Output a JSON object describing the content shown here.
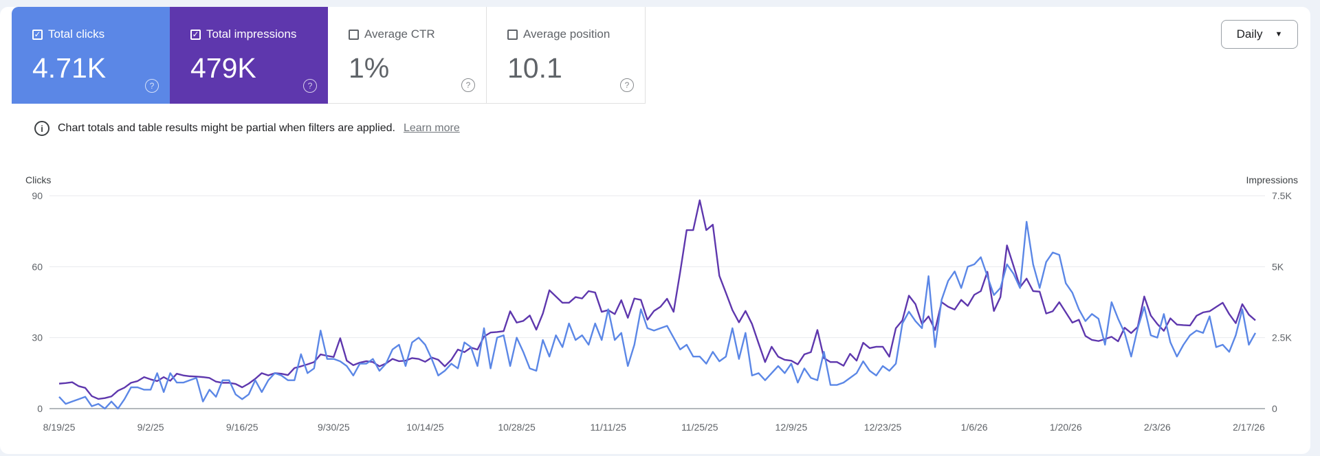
{
  "metrics": [
    {
      "label": "Total clicks",
      "value": "4.71K",
      "checked": true,
      "color": "#5b87e6"
    },
    {
      "label": "Total impressions",
      "value": "479K",
      "checked": true,
      "color": "#5e37ad"
    },
    {
      "label": "Average CTR",
      "value": "1%",
      "checked": false
    },
    {
      "label": "Average position",
      "value": "10.1",
      "checked": false
    }
  ],
  "granularity": {
    "label": "Daily",
    "icon": "caret-down-icon"
  },
  "notice": {
    "icon": "info-icon",
    "text": "Chart totals and table results might be partial when filters are applied.",
    "link": "Learn more"
  },
  "chart_data": {
    "type": "line",
    "ylabel": "Clicks",
    "y2label": "Impressions",
    "ylim": [
      0,
      90
    ],
    "y2lim": [
      0,
      7500
    ],
    "y_ticks": [
      "0",
      "30",
      "60",
      "90"
    ],
    "y2_ticks": [
      "0",
      "2.5K",
      "5K",
      "7.5K"
    ],
    "x_ticks": [
      "8/19/25",
      "9/2/25",
      "9/16/25",
      "9/30/25",
      "10/14/25",
      "10/28/25",
      "11/11/25",
      "11/25/25",
      "12/9/25",
      "12/23/25",
      "1/6/26",
      "1/20/26",
      "2/3/26",
      "2/17/26"
    ],
    "grid": true,
    "x": [
      "8/19/25",
      "8/20/25",
      "8/21/25",
      "8/22/25",
      "8/23/25",
      "8/24/25",
      "8/25/25",
      "8/26/25",
      "8/27/25",
      "8/28/25",
      "8/29/25",
      "8/30/25",
      "8/31/25",
      "9/1/25",
      "9/2/25",
      "9/3/25",
      "9/4/25",
      "9/5/25",
      "9/6/25",
      "9/7/25",
      "9/8/25",
      "9/9/25",
      "9/10/25",
      "9/11/25",
      "9/12/25",
      "9/13/25",
      "9/14/25",
      "9/15/25",
      "9/16/25",
      "9/17/25",
      "9/18/25",
      "9/19/25",
      "9/20/25",
      "9/21/25",
      "9/22/25",
      "9/23/25",
      "9/24/25",
      "9/25/25",
      "9/26/25",
      "9/27/25",
      "9/28/25",
      "9/29/25",
      "9/30/25",
      "10/1/25",
      "10/2/25",
      "10/3/25",
      "10/4/25",
      "10/5/25",
      "10/6/25",
      "10/7/25",
      "10/8/25",
      "10/9/25",
      "10/10/25",
      "10/11/25",
      "10/12/25",
      "10/13/25",
      "10/14/25",
      "10/15/25",
      "10/16/25",
      "10/17/25",
      "10/18/25",
      "10/19/25",
      "10/20/25",
      "10/21/25",
      "10/22/25",
      "10/23/25",
      "10/24/25",
      "10/25/25",
      "10/26/25",
      "10/27/25",
      "10/28/25",
      "10/29/25",
      "10/30/25",
      "10/31/25",
      "11/1/25",
      "11/2/25",
      "11/3/25",
      "11/4/25",
      "11/5/25",
      "11/6/25",
      "11/7/25",
      "11/8/25",
      "11/9/25",
      "11/10/25",
      "11/11/25",
      "11/12/25",
      "11/13/25",
      "11/14/25",
      "11/15/25",
      "11/16/25",
      "11/17/25",
      "11/18/25",
      "11/19/25",
      "11/20/25",
      "11/21/25",
      "11/22/25",
      "11/23/25",
      "11/24/25",
      "11/25/25",
      "11/26/25",
      "11/27/25",
      "11/28/25",
      "11/29/25",
      "11/30/25",
      "12/1/25",
      "12/2/25",
      "12/3/25",
      "12/4/25",
      "12/5/25",
      "12/6/25",
      "12/7/25",
      "12/8/25",
      "12/9/25",
      "12/10/25",
      "12/11/25",
      "12/12/25",
      "12/13/25",
      "12/14/25",
      "12/15/25",
      "12/16/25",
      "12/17/25",
      "12/18/25",
      "12/19/25",
      "12/20/25",
      "12/21/25",
      "12/22/25",
      "12/23/25",
      "12/24/25",
      "12/25/25",
      "12/26/25",
      "12/27/25",
      "12/28/25",
      "12/29/25",
      "12/30/25",
      "12/31/25",
      "1/1/26",
      "1/2/26",
      "1/3/26",
      "1/4/26",
      "1/5/26",
      "1/6/26",
      "1/7/26",
      "1/8/26",
      "1/9/26",
      "1/10/26",
      "1/11/26",
      "1/12/26",
      "1/13/26",
      "1/14/26",
      "1/15/26",
      "1/16/26",
      "1/17/26",
      "1/18/26",
      "1/19/26",
      "1/20/26",
      "1/21/26",
      "1/22/26",
      "1/23/26",
      "1/24/26",
      "1/25/26",
      "1/26/26",
      "1/27/26",
      "1/28/26",
      "1/29/26",
      "1/30/26",
      "1/31/26",
      "2/1/26",
      "2/2/26",
      "2/3/26",
      "2/4/26",
      "2/5/26",
      "2/6/26",
      "2/7/26",
      "2/8/26",
      "2/9/26",
      "2/10/26",
      "2/11/26",
      "2/12/26",
      "2/13/26",
      "2/14/26",
      "2/15/26",
      "2/16/26",
      "2/17/26",
      "2/18/26"
    ],
    "series": [
      {
        "name": "Clicks",
        "axis": "left",
        "color": "#5b87e6",
        "values": [
          5,
          2,
          3,
          4,
          5,
          1,
          2,
          0,
          3,
          0,
          4,
          9,
          9,
          8,
          8,
          15,
          7,
          15,
          11,
          11,
          12,
          13,
          3,
          8,
          5,
          12,
          12,
          6,
          4,
          6,
          12,
          7,
          12,
          15,
          14,
          12,
          12,
          23,
          15,
          17,
          33,
          21,
          21,
          20,
          18,
          14,
          19,
          19,
          21,
          16,
          19,
          25,
          27,
          18,
          28,
          30,
          27,
          21,
          14,
          16,
          19,
          17,
          28,
          26,
          18,
          34,
          17,
          30,
          31,
          18,
          30,
          24,
          17,
          16,
          29,
          22,
          31,
          26,
          36,
          29,
          31,
          27,
          36,
          29,
          42,
          29,
          32,
          18,
          27,
          42,
          34,
          33,
          34,
          35,
          30,
          25,
          27,
          22,
          22,
          19,
          24,
          20,
          22,
          34,
          21,
          32,
          14,
          15,
          12,
          15,
          18,
          15,
          19,
          11,
          17,
          13,
          12,
          24,
          10,
          10,
          11,
          13,
          15,
          20,
          16,
          14,
          18,
          16,
          19,
          36,
          41,
          37,
          34,
          56,
          26,
          46,
          54,
          58,
          51,
          60,
          61,
          64,
          56,
          48,
          51,
          61,
          57,
          51,
          79,
          61,
          51,
          62,
          66,
          65,
          53,
          49,
          42,
          37,
          40,
          38,
          27,
          45,
          38,
          32,
          22,
          34,
          43,
          31,
          30,
          40,
          28,
          22,
          27,
          31,
          33,
          32,
          39,
          26,
          27,
          24,
          31,
          42,
          27,
          32
        ]
      },
      {
        "name": "Impressions",
        "axis": "right",
        "color": "#5e37ad",
        "values": [
          880,
          900,
          930,
          790,
          730,
          440,
          340,
          370,
          430,
          630,
          740,
          910,
          970,
          1110,
          1030,
          970,
          1110,
          980,
          1230,
          1170,
          1140,
          1130,
          1110,
          1080,
          950,
          910,
          910,
          870,
          750,
          880,
          1050,
          1250,
          1170,
          1250,
          1230,
          1180,
          1430,
          1490,
          1560,
          1640,
          1910,
          1860,
          1820,
          2480,
          1690,
          1530,
          1620,
          1670,
          1640,
          1490,
          1590,
          1750,
          1670,
          1690,
          1780,
          1750,
          1650,
          1800,
          1720,
          1490,
          1720,
          2080,
          1990,
          2150,
          2080,
          2540,
          2680,
          2700,
          2730,
          3430,
          3030,
          3090,
          3280,
          2780,
          3350,
          4170,
          3950,
          3730,
          3730,
          3930,
          3880,
          4140,
          4090,
          3410,
          3470,
          3330,
          3820,
          3200,
          3880,
          3830,
          3130,
          3440,
          3590,
          3870,
          3410,
          4800,
          6290,
          6290,
          7340,
          6290,
          6480,
          4680,
          4080,
          3470,
          3040,
          3440,
          2980,
          2300,
          1640,
          2180,
          1830,
          1720,
          1690,
          1560,
          1910,
          1990,
          2770,
          1780,
          1640,
          1640,
          1510,
          1930,
          1690,
          2320,
          2130,
          2180,
          2180,
          1830,
          2830,
          3110,
          3980,
          3680,
          2980,
          3250,
          2770,
          3750,
          3590,
          3490,
          3830,
          3620,
          4010,
          4140,
          4820,
          3440,
          3930,
          5750,
          5030,
          4280,
          4580,
          4140,
          4120,
          3350,
          3430,
          3750,
          3390,
          3030,
          3130,
          2560,
          2420,
          2380,
          2450,
          2530,
          2370,
          2850,
          2660,
          2880,
          3950,
          3280,
          2980,
          2740,
          3180,
          2960,
          2940,
          2930,
          3270,
          3390,
          3430,
          3580,
          3730,
          3330,
          3010,
          3680,
          3310,
          3110
        ]
      }
    ]
  }
}
